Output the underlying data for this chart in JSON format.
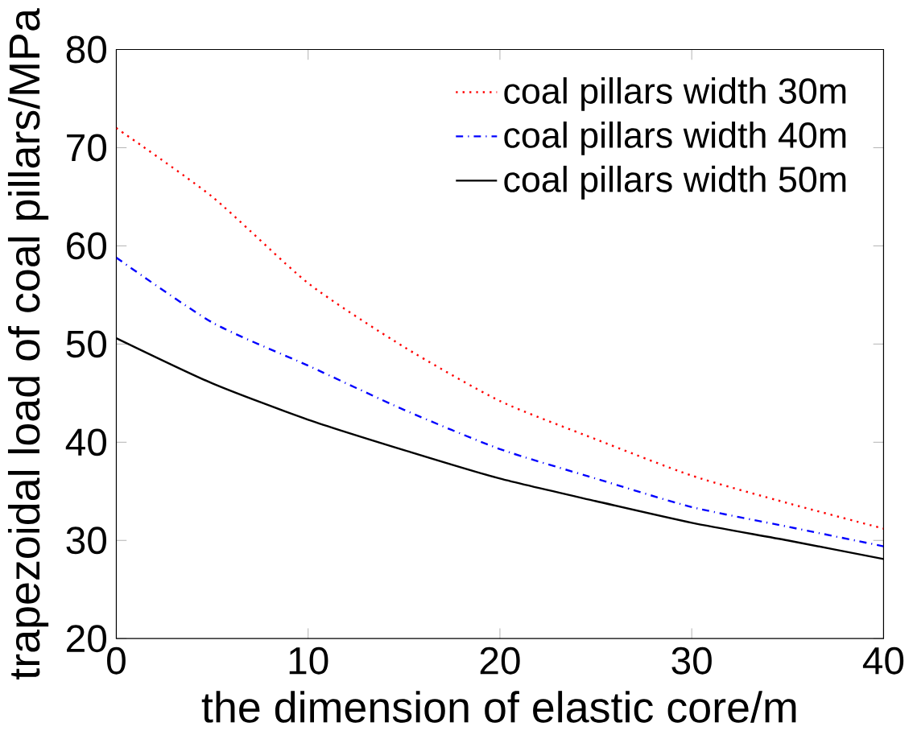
{
  "chart_data": {
    "type": "line",
    "xlabel": "the dimension of elastic core/m",
    "ylabel": "trapezoidal load of coal pillars/MPa",
    "x": [
      0,
      5,
      10,
      15,
      20,
      25,
      30,
      35,
      40
    ],
    "series": [
      {
        "name": "coal pillars width 30m",
        "color": "#ff0000",
        "line_style": "dotted",
        "values": [
          72.0,
          65.0,
          56.2,
          49.7,
          44.2,
          40.3,
          36.6,
          33.8,
          31.2
        ]
      },
      {
        "name": "coal pillars width 40m",
        "color": "#0000ff",
        "line_style": "dashed",
        "values": [
          58.8,
          52.2,
          47.8,
          43.3,
          39.3,
          36.3,
          33.4,
          31.4,
          29.4
        ]
      },
      {
        "name": "coal pillars width 50m",
        "color": "#000000",
        "line_style": "solid",
        "values": [
          50.6,
          46.0,
          42.3,
          39.2,
          36.3,
          34.0,
          31.8,
          30.0,
          28.1
        ]
      }
    ],
    "xlim": [
      0,
      40
    ],
    "ylim": [
      20,
      80
    ],
    "xticks": [
      0,
      10,
      20,
      30,
      40
    ],
    "yticks": [
      20,
      30,
      40,
      50,
      60,
      70,
      80
    ],
    "grid": false,
    "legend": "top right",
    "marker": "none"
  }
}
